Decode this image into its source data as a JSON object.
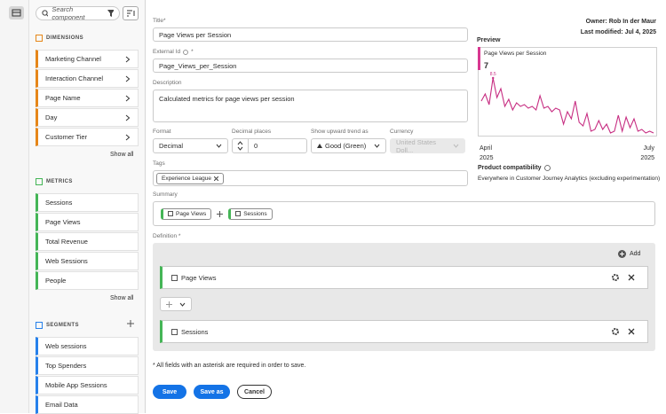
{
  "sidebar": {
    "search_placeholder": "Search component",
    "dimensions": {
      "title": "DIMENSIONS",
      "items": [
        "Marketing Channel",
        "Interaction Channel",
        "Page Name",
        "Day",
        "Customer Tier"
      ],
      "show_all": "Show all"
    },
    "metrics": {
      "title": "METRICS",
      "items": [
        "Sessions",
        "Page Views",
        "Total Revenue",
        "Web Sessions",
        "People"
      ],
      "show_all": "Show all"
    },
    "segments": {
      "title": "SEGMENTS",
      "items": [
        "Web sessions",
        "Top Spenders",
        "Mobile App Sessions",
        "Email Data"
      ]
    }
  },
  "form": {
    "title_label": "Title*",
    "title_value": "Page Views per Session",
    "external_id_label": "External Id",
    "required_mark": "*",
    "external_id_value": "Page_Views_per_Session",
    "description_label": "Description",
    "description_value": "Calculated metrics for page views per session",
    "format_label": "Format",
    "format_value": "Decimal",
    "decimal_places_label": "Decimal places",
    "decimal_places_value": 0,
    "trend_label": "Show upward trend as",
    "trend_value": "Good (Green)",
    "currency_label": "Currency",
    "currency_value": "United States Doll...",
    "tags_label": "Tags",
    "tags": [
      "Experience League"
    ],
    "summary_label": "Summary",
    "summary": [
      "Page Views",
      "Sessions"
    ],
    "definition_label": "Definition *",
    "add": "Add",
    "definition": [
      "Page Views",
      "Sessions"
    ],
    "note": "* All fields with an asterisk are required in order to save.",
    "buttons": [
      "Save",
      "Save as",
      "Cancel"
    ]
  },
  "info": {
    "owner": "Owner: Rob In der Maur",
    "last_modified": "Last modified: Jul 4, 2025"
  },
  "preview": {
    "title": "Preview",
    "card_title": "Page Views per Session",
    "value": 7,
    "sparkline": [
      7.2,
      7.6,
      7.0,
      8.5,
      7.4,
      7.9,
      6.9,
      7.3,
      6.7,
      7.1,
      6.9,
      7.0,
      6.8,
      6.9,
      6.7,
      7.5,
      6.8,
      6.9,
      6.6,
      6.8,
      6.7,
      5.9,
      6.6,
      6.2,
      7.2,
      6.0,
      5.8,
      6.5,
      5.5,
      5.6,
      6.1,
      5.6,
      5.9,
      5.4,
      5.5,
      6.4,
      5.5,
      6.3,
      5.7,
      6.2,
      5.5,
      5.6,
      5.4,
      5.5,
      5.4
    ],
    "x_labels": [
      {
        "month": "April",
        "year": "2025"
      },
      {
        "month": "July",
        "year": "2025"
      }
    ],
    "compat_label": "Product compatibility",
    "compat_value": "Everywhere in Customer Journey Analytics (excluding experimentation)"
  }
}
